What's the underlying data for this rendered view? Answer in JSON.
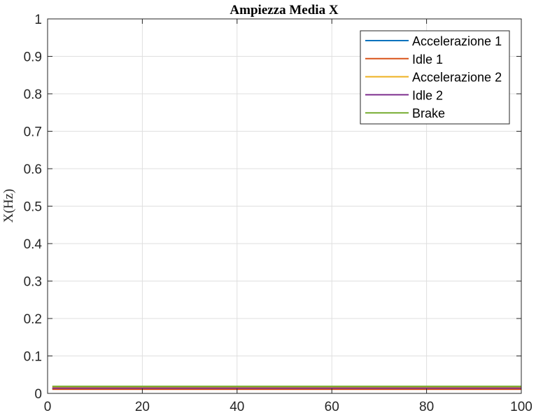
{
  "chart_data": {
    "type": "line",
    "title": "Ampiezza Media X",
    "xlabel": "",
    "ylabel": "X(Hz)",
    "xlim": [
      0,
      100
    ],
    "ylim": [
      0,
      1
    ],
    "xticks": [
      0,
      20,
      40,
      60,
      80,
      100
    ],
    "yticks": [
      0,
      0.1,
      0.2,
      0.3,
      0.4,
      0.5,
      0.6,
      0.7,
      0.8,
      0.9,
      1
    ],
    "grid": true,
    "legend_position": "top-right",
    "x": [
      1,
      100
    ],
    "series": [
      {
        "name": "Accelerazione 1",
        "color": "#0072BD",
        "values": [
          0.013,
          0.013
        ]
      },
      {
        "name": "Idle 1",
        "color": "#D95319",
        "values": [
          0.011,
          0.011
        ]
      },
      {
        "name": "Accelerazione 2",
        "color": "#EDB120",
        "values": [
          0.016,
          0.016
        ]
      },
      {
        "name": "Idle 2",
        "color": "#7E2F8E",
        "values": [
          0.014,
          0.014
        ]
      },
      {
        "name": "Brake",
        "color": "#77AC30",
        "values": [
          0.019,
          0.019
        ]
      }
    ]
  }
}
